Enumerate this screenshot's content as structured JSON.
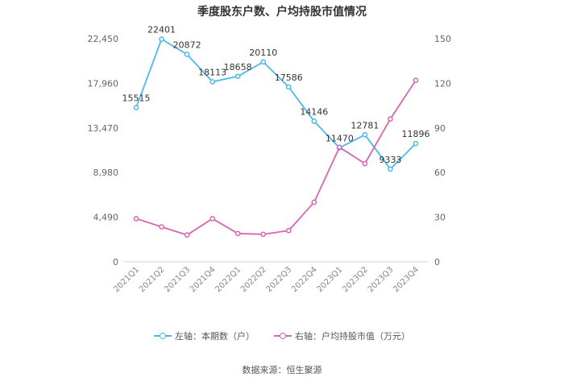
{
  "chart_data": {
    "type": "line",
    "title": "季度股东户数、户均持股市值情况",
    "categories": [
      "2021Q1",
      "2021Q2",
      "2021Q3",
      "2021Q4",
      "2022Q1",
      "2022Q2",
      "2022Q3",
      "2022Q4",
      "2023Q1",
      "2023Q2",
      "2023Q3",
      "2023Q4"
    ],
    "left_axis": {
      "ticks": [
        "0",
        "4,490",
        "8,980",
        "13,470",
        "17,960",
        "22,450"
      ],
      "ylim": [
        0,
        22450
      ]
    },
    "right_axis": {
      "ticks": [
        "0",
        "30",
        "60",
        "90",
        "120",
        "150"
      ],
      "ylim": [
        0,
        150
      ]
    },
    "series": [
      {
        "name": "左轴：本期数（户）",
        "axis": "left",
        "color": "#4db8ea",
        "values": [
          15515,
          22401,
          20872,
          18113,
          18658,
          20110,
          17586,
          14146,
          11470,
          12781,
          9333,
          11896
        ],
        "labels": [
          "15515",
          "22401",
          "20872",
          "18113",
          "18658",
          "20110",
          "17586",
          "14146",
          "11470",
          "12781",
          "9333",
          "11896"
        ]
      },
      {
        "name": "右轴：户均持股市值（万元）",
        "axis": "right",
        "color": "#d964b1",
        "values": [
          29,
          23.5,
          18,
          29,
          19,
          18.5,
          21,
          40,
          77,
          66,
          96,
          122
        ]
      }
    ],
    "grid": false,
    "legend_position": "bottom"
  },
  "footer": {
    "source": "数据来源：恒生聚源"
  }
}
